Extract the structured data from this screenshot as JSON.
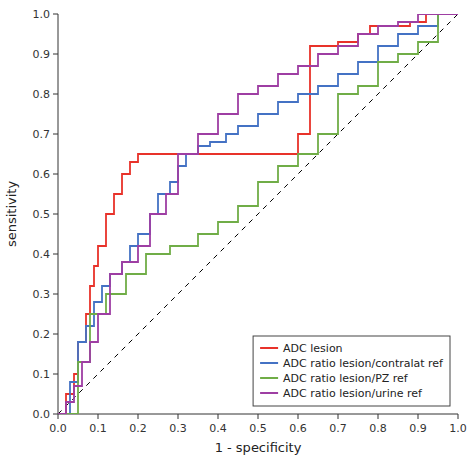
{
  "chart_data": {
    "type": "line",
    "xlabel": "1 - specificity",
    "ylabel": "sensitivity",
    "xlim": [
      0.0,
      1.0
    ],
    "ylim": [
      0.0,
      1.0
    ],
    "xticks": [
      {
        "value": 0.0,
        "label": "0.0"
      },
      0.1,
      0.2,
      0.3,
      0.4,
      0.5,
      0.6,
      0.7,
      0.8,
      0.9,
      {
        "value": 1.0,
        "label": "1.0"
      }
    ],
    "yticks": [
      {
        "value": 0.0,
        "label": "0.0"
      },
      0.1,
      0.2,
      0.3,
      0.4,
      0.5,
      0.6,
      0.7,
      0.8,
      0.9,
      {
        "value": 1.0,
        "label": "1.0"
      }
    ],
    "legend": "lower-right",
    "series": [
      {
        "color": "#000000",
        "line_style": "dashed",
        "x": [
          0,
          1
        ],
        "values": [
          0,
          1
        ]
      },
      {
        "name": "ADC lesion",
        "color": "#e8322a",
        "x": [
          0.0,
          0.02,
          0.02,
          0.04,
          0.04,
          0.05,
          0.05,
          0.07,
          0.07,
          0.08,
          0.08,
          0.09,
          0.09,
          0.1,
          0.1,
          0.12,
          0.12,
          0.14,
          0.14,
          0.16,
          0.16,
          0.18,
          0.18,
          0.2,
          0.2,
          0.21,
          0.21,
          0.22,
          0.22,
          0.25,
          0.25,
          0.3,
          0.3,
          0.6,
          0.6,
          0.63,
          0.63,
          0.7,
          0.7,
          0.75,
          0.75,
          0.78,
          0.78,
          0.85,
          0.85,
          0.88,
          0.88,
          0.92,
          0.92,
          1.0,
          1.0
        ],
        "values": [
          0.0,
          0.0,
          0.05,
          0.05,
          0.1,
          0.1,
          0.18,
          0.18,
          0.25,
          0.25,
          0.32,
          0.32,
          0.37,
          0.37,
          0.42,
          0.42,
          0.5,
          0.5,
          0.55,
          0.55,
          0.6,
          0.6,
          0.63,
          0.63,
          0.65,
          0.65,
          0.65,
          0.65,
          0.65,
          0.65,
          0.65,
          0.65,
          0.65,
          0.65,
          0.7,
          0.7,
          0.92,
          0.92,
          0.93,
          0.93,
          0.95,
          0.95,
          0.97,
          0.97,
          0.97,
          0.97,
          0.98,
          0.98,
          1.0,
          1.0,
          1.0
        ]
      },
      {
        "name": "ADC ratio lesion/contralat ref",
        "color": "#4472c4",
        "x": [
          0.0,
          0.03,
          0.03,
          0.05,
          0.05,
          0.07,
          0.07,
          0.09,
          0.09,
          0.11,
          0.11,
          0.13,
          0.13,
          0.16,
          0.16,
          0.18,
          0.18,
          0.2,
          0.2,
          0.23,
          0.23,
          0.25,
          0.25,
          0.28,
          0.28,
          0.3,
          0.3,
          0.32,
          0.32,
          0.35,
          0.35,
          0.38,
          0.38,
          0.42,
          0.42,
          0.45,
          0.45,
          0.5,
          0.5,
          0.55,
          0.55,
          0.6,
          0.6,
          0.65,
          0.65,
          0.7,
          0.7,
          0.75,
          0.75,
          0.8,
          0.8,
          0.85,
          0.85,
          0.9,
          0.9,
          0.95,
          0.95,
          1.0,
          1.0
        ],
        "values": [
          0.0,
          0.0,
          0.08,
          0.08,
          0.18,
          0.18,
          0.22,
          0.22,
          0.28,
          0.28,
          0.32,
          0.32,
          0.35,
          0.35,
          0.38,
          0.38,
          0.42,
          0.42,
          0.45,
          0.45,
          0.5,
          0.5,
          0.55,
          0.55,
          0.58,
          0.58,
          0.62,
          0.62,
          0.65,
          0.65,
          0.67,
          0.67,
          0.68,
          0.68,
          0.7,
          0.7,
          0.72,
          0.72,
          0.75,
          0.75,
          0.78,
          0.78,
          0.8,
          0.8,
          0.82,
          0.82,
          0.85,
          0.85,
          0.88,
          0.88,
          0.92,
          0.92,
          0.95,
          0.95,
          0.97,
          0.97,
          1.0,
          1.0,
          1.0
        ]
      },
      {
        "name": "ADC ratio lesion/PZ ref",
        "color": "#70ad47",
        "x": [
          0.0,
          0.05,
          0.05,
          0.08,
          0.08,
          0.12,
          0.12,
          0.17,
          0.17,
          0.22,
          0.22,
          0.28,
          0.28,
          0.35,
          0.35,
          0.4,
          0.4,
          0.45,
          0.45,
          0.5,
          0.5,
          0.55,
          0.55,
          0.6,
          0.6,
          0.65,
          0.65,
          0.7,
          0.7,
          0.75,
          0.75,
          0.8,
          0.8,
          0.85,
          0.85,
          0.9,
          0.9,
          0.95,
          0.95,
          1.0,
          1.0
        ],
        "values": [
          0.0,
          0.0,
          0.13,
          0.13,
          0.25,
          0.25,
          0.3,
          0.3,
          0.35,
          0.35,
          0.4,
          0.4,
          0.42,
          0.42,
          0.45,
          0.45,
          0.48,
          0.48,
          0.52,
          0.52,
          0.58,
          0.58,
          0.62,
          0.62,
          0.65,
          0.65,
          0.7,
          0.7,
          0.8,
          0.8,
          0.82,
          0.82,
          0.88,
          0.88,
          0.9,
          0.9,
          0.93,
          0.93,
          1.0,
          1.0,
          1.0
        ]
      },
      {
        "name": "ADC ratio lesion/urine ref",
        "color": "#9e3ea3",
        "x": [
          0.0,
          0.02,
          0.02,
          0.04,
          0.04,
          0.06,
          0.06,
          0.08,
          0.08,
          0.1,
          0.1,
          0.13,
          0.13,
          0.16,
          0.16,
          0.2,
          0.2,
          0.23,
          0.23,
          0.27,
          0.27,
          0.3,
          0.3,
          0.35,
          0.35,
          0.4,
          0.4,
          0.45,
          0.45,
          0.5,
          0.5,
          0.55,
          0.55,
          0.6,
          0.6,
          0.65,
          0.65,
          0.7,
          0.7,
          0.75,
          0.75,
          0.8,
          0.8,
          0.85,
          0.85,
          0.9,
          0.9,
          1.0,
          1.0
        ],
        "values": [
          0.0,
          0.0,
          0.03,
          0.03,
          0.07,
          0.07,
          0.13,
          0.13,
          0.18,
          0.18,
          0.25,
          0.25,
          0.35,
          0.35,
          0.38,
          0.38,
          0.42,
          0.42,
          0.5,
          0.5,
          0.55,
          0.55,
          0.65,
          0.65,
          0.7,
          0.7,
          0.75,
          0.75,
          0.8,
          0.8,
          0.82,
          0.82,
          0.85,
          0.85,
          0.87,
          0.87,
          0.9,
          0.9,
          0.92,
          0.92,
          0.95,
          0.95,
          0.97,
          0.97,
          0.98,
          0.98,
          1.0,
          1.0,
          1.0
        ]
      }
    ]
  }
}
